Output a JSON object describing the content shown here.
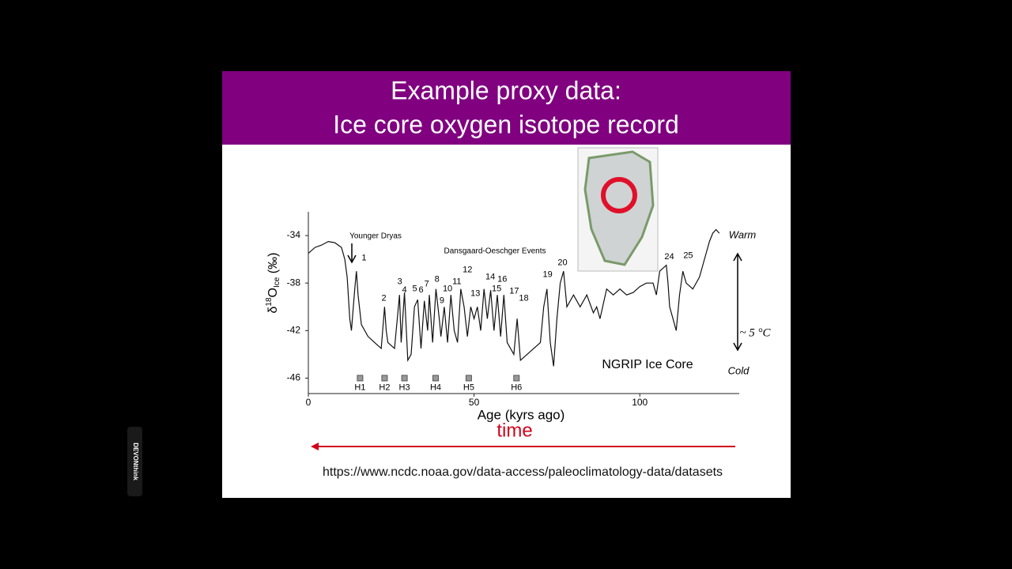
{
  "slide": {
    "title_lines": [
      "Example proxy data:",
      "Ice core oxygen isotope record"
    ],
    "url": "https://www.ncdc.noaa.gov/data-access/paleoclimatology-data/datasets",
    "time_label": "time",
    "sidebar": "DEVONthink"
  },
  "chart_data": {
    "type": "line",
    "xlabel": "Age (kyrs ago)",
    "ylabel": {
      "delta": "δ",
      "sup": "18",
      "base": "O",
      "sub": "Ice",
      "unit": " (‰)"
    },
    "xlim": [
      0,
      130
    ],
    "ylim": [
      -47.3,
      -32
    ],
    "xticks": [
      0,
      50,
      100
    ],
    "yticks": [
      -34,
      -38,
      -42,
      -46
    ],
    "x": [
      0,
      2,
      4,
      6,
      8,
      10,
      11,
      11.7,
      12.5,
      13,
      14,
      14.5,
      15,
      16,
      18,
      20,
      22,
      23,
      23.5,
      24,
      26,
      27.5,
      28,
      29,
      30,
      31,
      32,
      33,
      34,
      35,
      36,
      36.5,
      37.5,
      38.5,
      39.5,
      40,
      41,
      42,
      43,
      44,
      45,
      46,
      47,
      48,
      49,
      50,
      51,
      52,
      53,
      54,
      55,
      56,
      57,
      58,
      59,
      60,
      62,
      63,
      64,
      66,
      68,
      70,
      71,
      72,
      73,
      74,
      75,
      76,
      77,
      78,
      80,
      82,
      84,
      86,
      87,
      88,
      90,
      92,
      94,
      96,
      98,
      100,
      102,
      104,
      105,
      106,
      108,
      108.5,
      109,
      110,
      111,
      112,
      113,
      114,
      116,
      118,
      119,
      120,
      121,
      122,
      123,
      124
    ],
    "series": [
      {
        "color": "#111111",
        "values": [
          -35.5,
          -35,
          -34.8,
          -34.5,
          -34.6,
          -35,
          -36,
          -37.5,
          -41,
          -42,
          -38.5,
          -37,
          -39,
          -41.5,
          -42.5,
          -43,
          -43.5,
          -40,
          -42,
          -43,
          -43.5,
          -39,
          -43,
          -38.8,
          -44.5,
          -44,
          -40,
          -39.4,
          -43.5,
          -39.5,
          -42,
          -39,
          -43,
          -38.5,
          -41,
          -42.5,
          -40,
          -43,
          -39,
          -42,
          -43,
          -38.5,
          -40,
          -42.5,
          -40,
          -41,
          -40,
          -42,
          -38.5,
          -41,
          -38.6,
          -42,
          -39,
          -42.5,
          -39,
          -43,
          -44,
          -41,
          -44.5,
          -44,
          -43.5,
          -43,
          -40,
          -38.5,
          -43,
          -45,
          -41,
          -38,
          -37,
          -40,
          -39,
          -40,
          -39,
          -40.5,
          -40,
          -41,
          -38.5,
          -39,
          -38.5,
          -39,
          -38.8,
          -38.3,
          -38,
          -38,
          -39,
          -37,
          -36.5,
          -38,
          -40,
          -41,
          -42,
          -39,
          -37,
          -38,
          -38.5,
          -37.5,
          -36.5,
          -35.5,
          -34.5,
          -33.8,
          -33.5,
          -33.8
        ]
      }
    ],
    "event_labels": [
      {
        "text": "1",
        "x": 16.8,
        "y": -35.9
      },
      {
        "text": "2",
        "x": 22.8,
        "y": -39.3
      },
      {
        "text": "3",
        "x": 27.6,
        "y": -37.9
      },
      {
        "text": "4",
        "x": 29,
        "y": -38.6
      },
      {
        "text": "5",
        "x": 32.1,
        "y": -38.5
      },
      {
        "text": "6",
        "x": 34,
        "y": -38.6
      },
      {
        "text": "7",
        "x": 35.7,
        "y": -38.1
      },
      {
        "text": "8",
        "x": 38.8,
        "y": -37.7
      },
      {
        "text": "9",
        "x": 40.3,
        "y": -39.5
      },
      {
        "text": "10",
        "x": 42,
        "y": -38.5
      },
      {
        "text": "11",
        "x": 44.8,
        "y": -37.9
      },
      {
        "text": "12",
        "x": 48,
        "y": -36.9
      },
      {
        "text": "13",
        "x": 50.4,
        "y": -38.9
      },
      {
        "text": "14",
        "x": 54.9,
        "y": -37.5
      },
      {
        "text": "15",
        "x": 56.8,
        "y": -38.5
      },
      {
        "text": "16",
        "x": 58.5,
        "y": -37.7
      },
      {
        "text": "17",
        "x": 62.1,
        "y": -38.7
      },
      {
        "text": "18",
        "x": 65,
        "y": -39.3
      },
      {
        "text": "19",
        "x": 72.2,
        "y": -37.3
      },
      {
        "text": "20",
        "x": 76.7,
        "y": -36.3
      },
      {
        "text": "24",
        "x": 108.9,
        "y": -35.8
      },
      {
        "text": "25",
        "x": 114.6,
        "y": -35.7
      }
    ],
    "heinrich": {
      "labels": [
        "H1",
        "H2",
        "H3",
        "H4",
        "H5",
        "H6"
      ],
      "x": [
        15.6,
        23,
        29,
        38.4,
        48.4,
        62.8
      ],
      "y": -46
    },
    "annotations": {
      "younger_dryas": "Younger Dryas",
      "do_events": "Dansgaard-Oeschger Events",
      "core": "NGRIP Ice Core",
      "warm": "Warm",
      "cold": "Cold",
      "range": "~ 5 °C"
    }
  }
}
